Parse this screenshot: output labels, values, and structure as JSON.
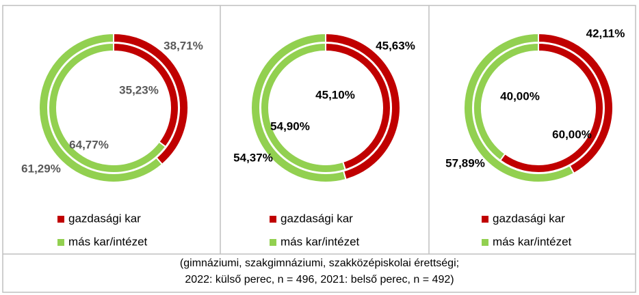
{
  "chart_data": [
    {
      "type": "donut",
      "categories": [
        "gazdasági kar",
        "más kar/intézet"
      ],
      "colors": [
        "#c00000",
        "#92d050"
      ],
      "label_color": "#595959",
      "series": [
        {
          "values": [
            38.71,
            61.29
          ],
          "value_labels": [
            "38,71%",
            "61,29%"
          ]
        },
        {
          "values": [
            35.23,
            64.77
          ],
          "value_labels": [
            "35,23%",
            "64,77%"
          ]
        }
      ]
    },
    {
      "type": "donut",
      "categories": [
        "gazdasági kar",
        "más kar/intézet"
      ],
      "colors": [
        "#c00000",
        "#92d050"
      ],
      "label_color": "#000000",
      "series": [
        {
          "values": [
            45.63,
            54.37
          ],
          "value_labels": [
            "45,63%",
            "54,37%"
          ]
        },
        {
          "values": [
            45.1,
            54.9
          ],
          "value_labels": [
            "45,10%",
            "54,90%"
          ]
        }
      ]
    },
    {
      "type": "donut",
      "categories": [
        "gazdasági kar",
        "más kar/intézet"
      ],
      "colors": [
        "#c00000",
        "#92d050"
      ],
      "label_color": "#000000",
      "series": [
        {
          "values": [
            42.11,
            57.89
          ],
          "value_labels": [
            "42,11%",
            "57,89%"
          ]
        },
        {
          "values": [
            60.0,
            40.0
          ],
          "value_labels": [
            "60,00%",
            "40,00%"
          ]
        }
      ]
    }
  ],
  "caption": [
    "(gimnáziumi, szakgimnáziumi, szakközépiskolai érettségi;",
    "2022: külső perec, n = 496, 2021: belső perec, n = 492)"
  ]
}
